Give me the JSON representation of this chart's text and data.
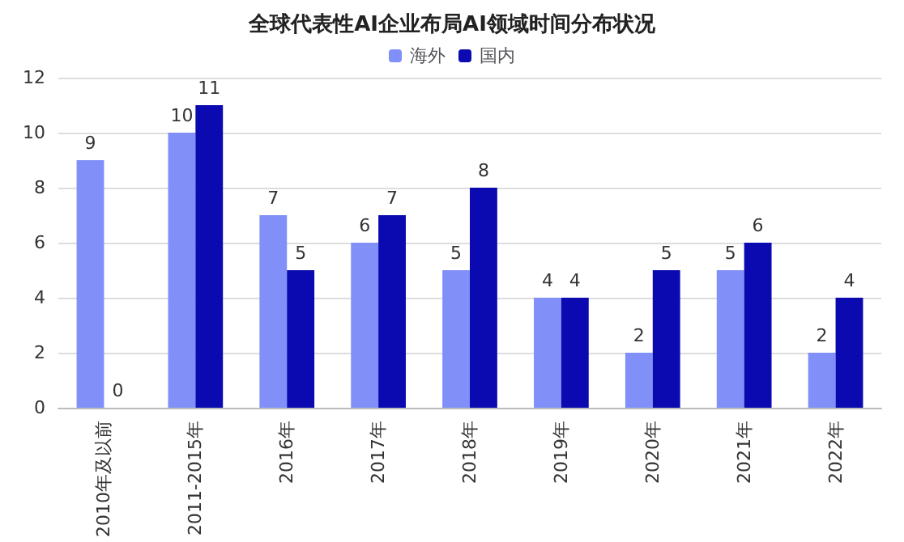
{
  "chart_data": {
    "type": "bar",
    "title": "全球代表性AI企业布局AI领域时间分布状况",
    "categories": [
      "2010年及以前",
      "2011-2015年",
      "2016年",
      "2017年",
      "2018年",
      "2019年",
      "2020年",
      "2021年",
      "2022年"
    ],
    "series": [
      {
        "name": "海外",
        "color": "#8090f8",
        "values": [
          9,
          10,
          7,
          6,
          5,
          4,
          2,
          5,
          2
        ]
      },
      {
        "name": "国内",
        "color": "#0a0ab0",
        "values": [
          0,
          11,
          5,
          7,
          8,
          4,
          5,
          6,
          4
        ]
      }
    ],
    "ylim": [
      0,
      12
    ],
    "yticks": [
      0,
      2,
      4,
      6,
      8,
      10,
      12
    ],
    "grid": "y",
    "legend": "top",
    "data_labels": true
  }
}
